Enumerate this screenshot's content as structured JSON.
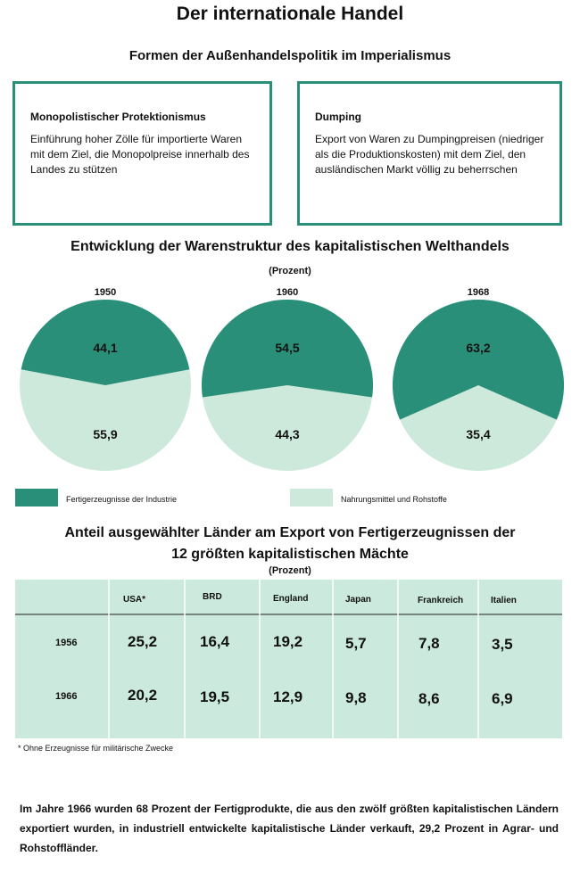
{
  "title": "Der internationale Handel",
  "subtitle": "Formen der Außenhandelspolitik im Imperialismus",
  "boxes": [
    {
      "title": "Monopolistischer Protektionismus",
      "text": "Einführung hoher Zölle für importierte Waren mit dem Ziel, die Monopolpreise innerhalb des Landes zu stützen"
    },
    {
      "title": "Dumping",
      "text": "Export von Waren zu Dumpingpreisen (niedriger als die Produktionskosten) mit dem Ziel, den ausländischen Markt völlig zu beherrschen"
    }
  ],
  "section2": {
    "title": "Entwicklung der Warenstruktur des kapitalistischen Welthandels",
    "unit": "(Prozent)"
  },
  "legend": {
    "industry": "Fertigerzeugnisse der Industrie",
    "food": "Nahrungsmittel und Rohstoffe"
  },
  "colors": {
    "industry": "#2a8f78",
    "food": "#cde9dc",
    "table": "#cbe9dc"
  },
  "chart_data": {
    "type": "pie",
    "charts": [
      {
        "year": "1950",
        "values": [
          44.1,
          55.9
        ],
        "labels": [
          "44,1",
          "55,9"
        ]
      },
      {
        "year": "1960",
        "values": [
          54.5,
          44.3
        ],
        "labels": [
          "54,5",
          "44,3"
        ]
      },
      {
        "year": "1968",
        "values": [
          63.2,
          35.4
        ],
        "labels": [
          "63,2",
          "35,4"
        ]
      }
    ],
    "series": [
      {
        "name": "Fertigerzeugnisse der Industrie"
      },
      {
        "name": "Nahrungsmittel und Rohstoffe"
      }
    ]
  },
  "section3": {
    "title_line1": "Anteil ausgewählter Länder am Export von Fertigerzeugnissen der",
    "title_line2": "12 größten kapitalistischen Mächte",
    "unit": "(Prozent)"
  },
  "table": {
    "headers": [
      "USA*",
      "BRD",
      "England",
      "Japan",
      "Frankreich",
      "Italien"
    ],
    "rows": [
      {
        "year": "1956",
        "values": [
          "25,2",
          "16,4",
          "19,2",
          "5,7",
          "7,8",
          "3,5"
        ]
      },
      {
        "year": "1966",
        "values": [
          "20,2",
          "19,5",
          "12,9",
          "9,8",
          "8,6",
          "6,9"
        ]
      }
    ]
  },
  "footnote": "* Ohne Erzeugnisse für militärische Zwecke",
  "bottom_text": "Im Jahre 1966 wurden 68 Prozent der Fertigprodukte, die aus den zwölf größten kapitalistischen Ländern exportiert wurden, in industriell entwickelte kapitalistische Länder verkauft, 29,2 Prozent in Agrar- und Rohstoffländer."
}
